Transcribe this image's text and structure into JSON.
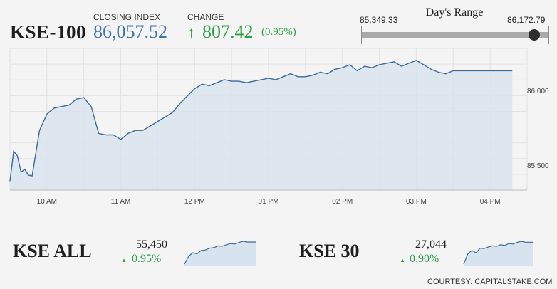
{
  "header": {
    "index_name": "KSE-100",
    "closing_label": "CLOSING INDEX",
    "closing_value": "86,057.52",
    "change_label": "CHANGE",
    "change_value": "807.42",
    "change_pct": "(0.95%)",
    "change_arrow_icon": "arrow-up-icon"
  },
  "days_range": {
    "title": "Day's Range",
    "low": "85,349.33",
    "high": "86,172.79",
    "current_fraction": 0.92
  },
  "colors": {
    "accent_blue": "#3d76a9",
    "line": "#3b6a99",
    "area_fill": "#d7e3ef",
    "positive_green": "#2fa04a",
    "range_track": "#a9a9a9"
  },
  "chart_data": {
    "type": "area",
    "title": "",
    "xlabel": "",
    "ylabel": "",
    "xtick_labels": [
      "10 AM",
      "11 AM",
      "12 PM",
      "01 PM",
      "02 PM",
      "03 PM",
      "04 PM"
    ],
    "ytick_labels": [
      "85,500",
      "86,000"
    ],
    "ytick_values": [
      85500,
      86000
    ],
    "x_hours": [
      9.5,
      9.55,
      9.6,
      9.65,
      9.7,
      9.75,
      9.8,
      9.9,
      10.0,
      10.1,
      10.2,
      10.3,
      10.4,
      10.5,
      10.6,
      10.7,
      10.8,
      10.9,
      11.0,
      11.1,
      11.2,
      11.3,
      11.4,
      11.5,
      11.6,
      11.7,
      11.8,
      11.9,
      12.0,
      12.1,
      12.2,
      12.3,
      12.4,
      12.5,
      12.6,
      12.7,
      12.8,
      12.9,
      13.0,
      13.1,
      13.2,
      13.3,
      13.4,
      13.5,
      13.6,
      13.7,
      13.8,
      13.9,
      14.0,
      14.1,
      14.2,
      14.3,
      14.4,
      14.5,
      14.6,
      14.7,
      14.8,
      14.9,
      15.0,
      15.1,
      15.2,
      15.3,
      15.4,
      15.5,
      15.6,
      15.8,
      16.0,
      16.2,
      16.3
    ],
    "y_values": [
      85360,
      85560,
      85530,
      85420,
      85440,
      85400,
      85395,
      85700,
      85810,
      85850,
      85860,
      85870,
      85910,
      85920,
      85860,
      85680,
      85670,
      85670,
      85640,
      85680,
      85700,
      85700,
      85730,
      85760,
      85790,
      85820,
      85880,
      85930,
      85980,
      86010,
      86000,
      86020,
      86040,
      86030,
      86030,
      86020,
      86030,
      86040,
      86050,
      86040,
      86060,
      86080,
      86060,
      86060,
      86070,
      86090,
      86080,
      86110,
      86120,
      86140,
      86100,
      86130,
      86120,
      86140,
      86150,
      86160,
      86130,
      86150,
      86170,
      86140,
      86110,
      86090,
      86080,
      86100,
      86100,
      86100,
      86100,
      86100,
      86100
    ],
    "xlim": [
      9.5,
      16.5
    ],
    "ylim": [
      85300,
      86250
    ],
    "grid": true
  },
  "mini_charts": [
    {
      "name": "KSE ALL",
      "value": "55,450",
      "change_pct": "0.95%",
      "arrow_icon": "triangle-up-icon",
      "series_shape": [
        0.0,
        0.35,
        0.5,
        0.45,
        0.6,
        0.62,
        0.7,
        0.72,
        0.8,
        0.78,
        0.85,
        0.9,
        0.88,
        0.95,
        1.0,
        0.97,
        0.97,
        0.97
      ]
    },
    {
      "name": "KSE 30",
      "value": "27,044",
      "change_pct": "0.90%",
      "arrow_icon": "triangle-up-icon",
      "series_shape": [
        0.0,
        0.45,
        0.6,
        0.5,
        0.7,
        0.68,
        0.75,
        0.8,
        0.78,
        0.85,
        0.82,
        0.9,
        0.88,
        0.95,
        1.0,
        0.96,
        0.96,
        0.96
      ]
    }
  ],
  "footer": {
    "courtesy": "COURTESY: CAPITALSTAKE.COM"
  }
}
